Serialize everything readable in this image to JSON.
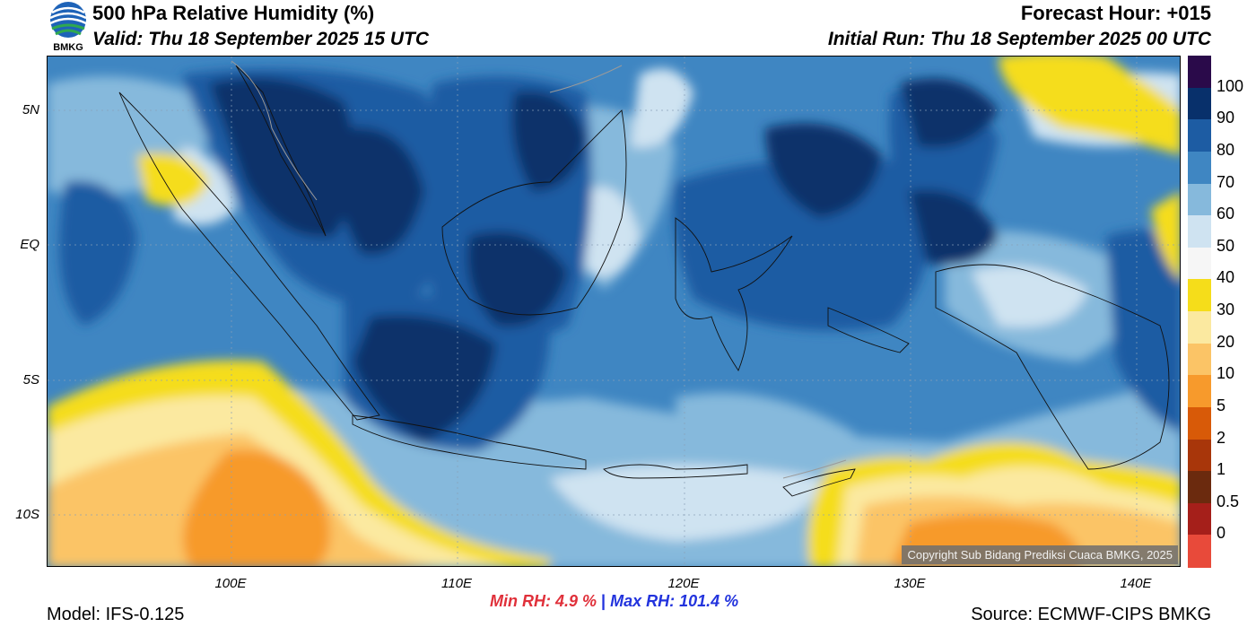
{
  "header": {
    "title": "500 hPa Relative Humidity (%)",
    "valid": "Valid: Thu 18 September 2025 15 UTC",
    "forecast_hour": "Forecast Hour: +015",
    "initial_run": "Initial Run: Thu 18 September 2025 00 UTC",
    "logo_text": "BMKG"
  },
  "map": {
    "lat_labels": [
      "5N",
      "EQ",
      "5S",
      "10S"
    ],
    "lon_labels": [
      "100E",
      "110E",
      "120E",
      "130E",
      "140E"
    ],
    "copyright": "Copyright Sub Bidang Prediksi Cuaca BMKG, 2025"
  },
  "colorbar": {
    "labels": [
      "100",
      "90",
      "80",
      "70",
      "60",
      "50",
      "40",
      "30",
      "20",
      "10",
      "5",
      "2",
      "1",
      "0.5",
      "0"
    ],
    "colors": [
      "#2a0a4a",
      "#08306b",
      "#1d5ca3",
      "#3f86c2",
      "#86b9dc",
      "#cfe3f1",
      "#f6f6f6",
      "#f5dd1a",
      "#fbe9a0",
      "#fbc466",
      "#f79a2c",
      "#d85a08",
      "#a8360a",
      "#6b2a0e",
      "#a51f1a",
      "#e84a3a"
    ]
  },
  "stats": {
    "min_label": "Min RH:   4.9 %",
    "separator": "|",
    "max_label": "Max RH: 101.4 %"
  },
  "footer": {
    "model": "Model: IFS-0.125",
    "source": "Source: ECMWF-CIPS BMKG"
  }
}
